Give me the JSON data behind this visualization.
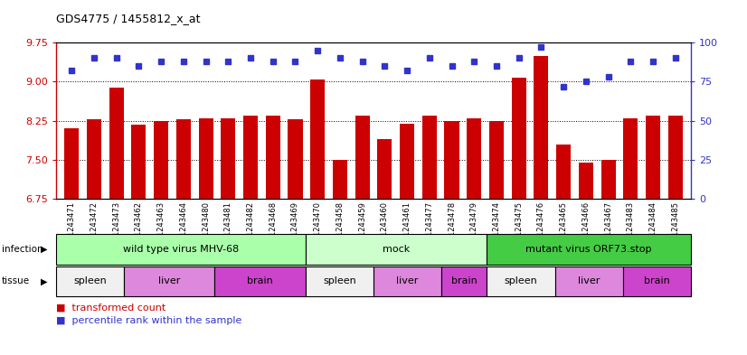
{
  "title": "GDS4775 / 1455812_x_at",
  "samples": [
    "GSM1243471",
    "GSM1243472",
    "GSM1243473",
    "GSM1243462",
    "GSM1243463",
    "GSM1243464",
    "GSM1243480",
    "GSM1243481",
    "GSM1243482",
    "GSM1243468",
    "GSM1243469",
    "GSM1243470",
    "GSM1243458",
    "GSM1243459",
    "GSM1243460",
    "GSM1243461",
    "GSM1243477",
    "GSM1243478",
    "GSM1243479",
    "GSM1243474",
    "GSM1243475",
    "GSM1243476",
    "GSM1243465",
    "GSM1243466",
    "GSM1243467",
    "GSM1243483",
    "GSM1243484",
    "GSM1243485"
  ],
  "transformed_count": [
    8.1,
    8.27,
    8.88,
    8.17,
    8.25,
    8.27,
    8.3,
    8.3,
    8.35,
    8.35,
    8.27,
    9.05,
    7.5,
    8.35,
    7.9,
    8.19,
    8.35,
    8.25,
    8.3,
    8.25,
    9.07,
    9.5,
    7.8,
    7.45,
    7.5,
    8.3,
    8.35,
    8.35
  ],
  "percentile_rank": [
    82,
    90,
    90,
    85,
    88,
    88,
    88,
    88,
    90,
    88,
    88,
    95,
    90,
    88,
    85,
    82,
    90,
    85,
    88,
    85,
    90,
    97,
    72,
    75,
    78,
    88,
    88,
    90
  ],
  "bar_color": "#cc0000",
  "dot_color": "#3333cc",
  "ylim_left": [
    6.75,
    9.75
  ],
  "ylim_right": [
    0,
    100
  ],
  "yticks_left": [
    6.75,
    7.5,
    8.25,
    9.0,
    9.75
  ],
  "yticks_right": [
    0,
    25,
    50,
    75,
    100
  ],
  "grid_values": [
    7.5,
    8.25,
    9.0
  ],
  "infection_groups": [
    {
      "label": "wild type virus MHV-68",
      "start": 0,
      "end": 11,
      "color": "#aaffaa"
    },
    {
      "label": "mock",
      "start": 11,
      "end": 19,
      "color": "#ccffcc"
    },
    {
      "label": "mutant virus ORF73.stop",
      "start": 19,
      "end": 28,
      "color": "#44cc44"
    }
  ],
  "tissue_groups": [
    {
      "label": "spleen",
      "start": 0,
      "end": 3,
      "color": "#f0f0f0"
    },
    {
      "label": "liver",
      "start": 3,
      "end": 7,
      "color": "#dd88dd"
    },
    {
      "label": "brain",
      "start": 7,
      "end": 11,
      "color": "#cc44cc"
    },
    {
      "label": "spleen",
      "start": 11,
      "end": 14,
      "color": "#f0f0f0"
    },
    {
      "label": "liver",
      "start": 14,
      "end": 17,
      "color": "#dd88dd"
    },
    {
      "label": "brain",
      "start": 17,
      "end": 19,
      "color": "#cc44cc"
    },
    {
      "label": "spleen",
      "start": 19,
      "end": 22,
      "color": "#f0f0f0"
    },
    {
      "label": "liver",
      "start": 22,
      "end": 25,
      "color": "#dd88dd"
    },
    {
      "label": "brain",
      "start": 25,
      "end": 28,
      "color": "#cc44cc"
    }
  ]
}
